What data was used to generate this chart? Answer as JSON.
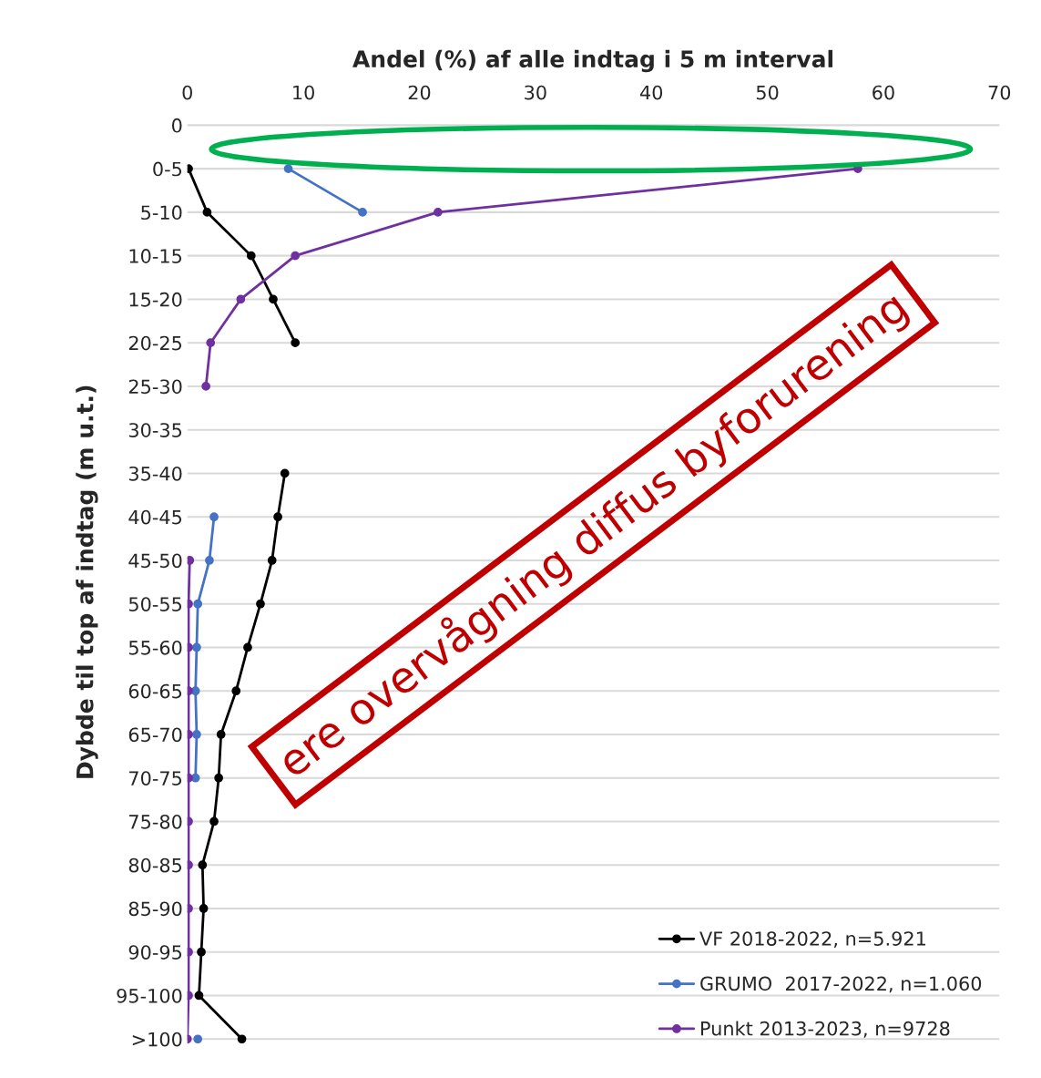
{
  "chart_data": {
    "type": "line",
    "orientation": "horizontal",
    "xlabel": "Andel (%) af alle indtag i 5 m interval",
    "ylabel": "Dybde til top af indtag (m u.t.)",
    "categories": [
      "0",
      "0-5",
      "5-10",
      "10-15",
      "15-20",
      "20-25",
      "25-30",
      "30-35",
      "35-40",
      "40-45",
      "45-50",
      "50-55",
      "55-60",
      "60-65",
      "65-70",
      "70-75",
      "75-80",
      "80-85",
      "85-90",
      "90-95",
      "95-100",
      ">100"
    ],
    "series": [
      {
        "name": "VF 2018-2022, n=5.921",
        "color": "#000000",
        "values": [
          null,
          0.1,
          1.7,
          5.5,
          7.4,
          9.3,
          null,
          null,
          8.4,
          7.8,
          7.3,
          6.3,
          5.2,
          4.2,
          2.9,
          2.7,
          2.3,
          1.3,
          1.4,
          1.2,
          1.0,
          4.7
        ]
      },
      {
        "name": "GRUMO  2017-2022, n=1.060",
        "color": "#4472c4",
        "values": [
          null,
          8.7,
          15.1,
          null,
          null,
          null,
          null,
          null,
          null,
          2.3,
          1.9,
          0.9,
          0.8,
          0.7,
          0.8,
          0.7,
          null,
          null,
          null,
          null,
          null,
          0.9
        ]
      },
      {
        "name": "Punkt 2013-2023, n=9728",
        "color": "#7030a0",
        "values": [
          null,
          57.8,
          21.6,
          9.3,
          4.6,
          2.0,
          1.6,
          null,
          null,
          null,
          0.2,
          0.1,
          0.1,
          0.1,
          0.1,
          0.1,
          0.1,
          0.1,
          0.1,
          0.1,
          0.1,
          0.0
        ]
      }
    ],
    "xlim": [
      0,
      70
    ],
    "xticks": [
      0,
      10,
      20,
      30,
      40,
      50,
      60,
      70
    ],
    "grid": "y",
    "legend": "bottom right",
    "marker": "circle",
    "line_style": "solid",
    "annotations": [
      "ere overvågning diffus byforurening"
    ]
  }
}
